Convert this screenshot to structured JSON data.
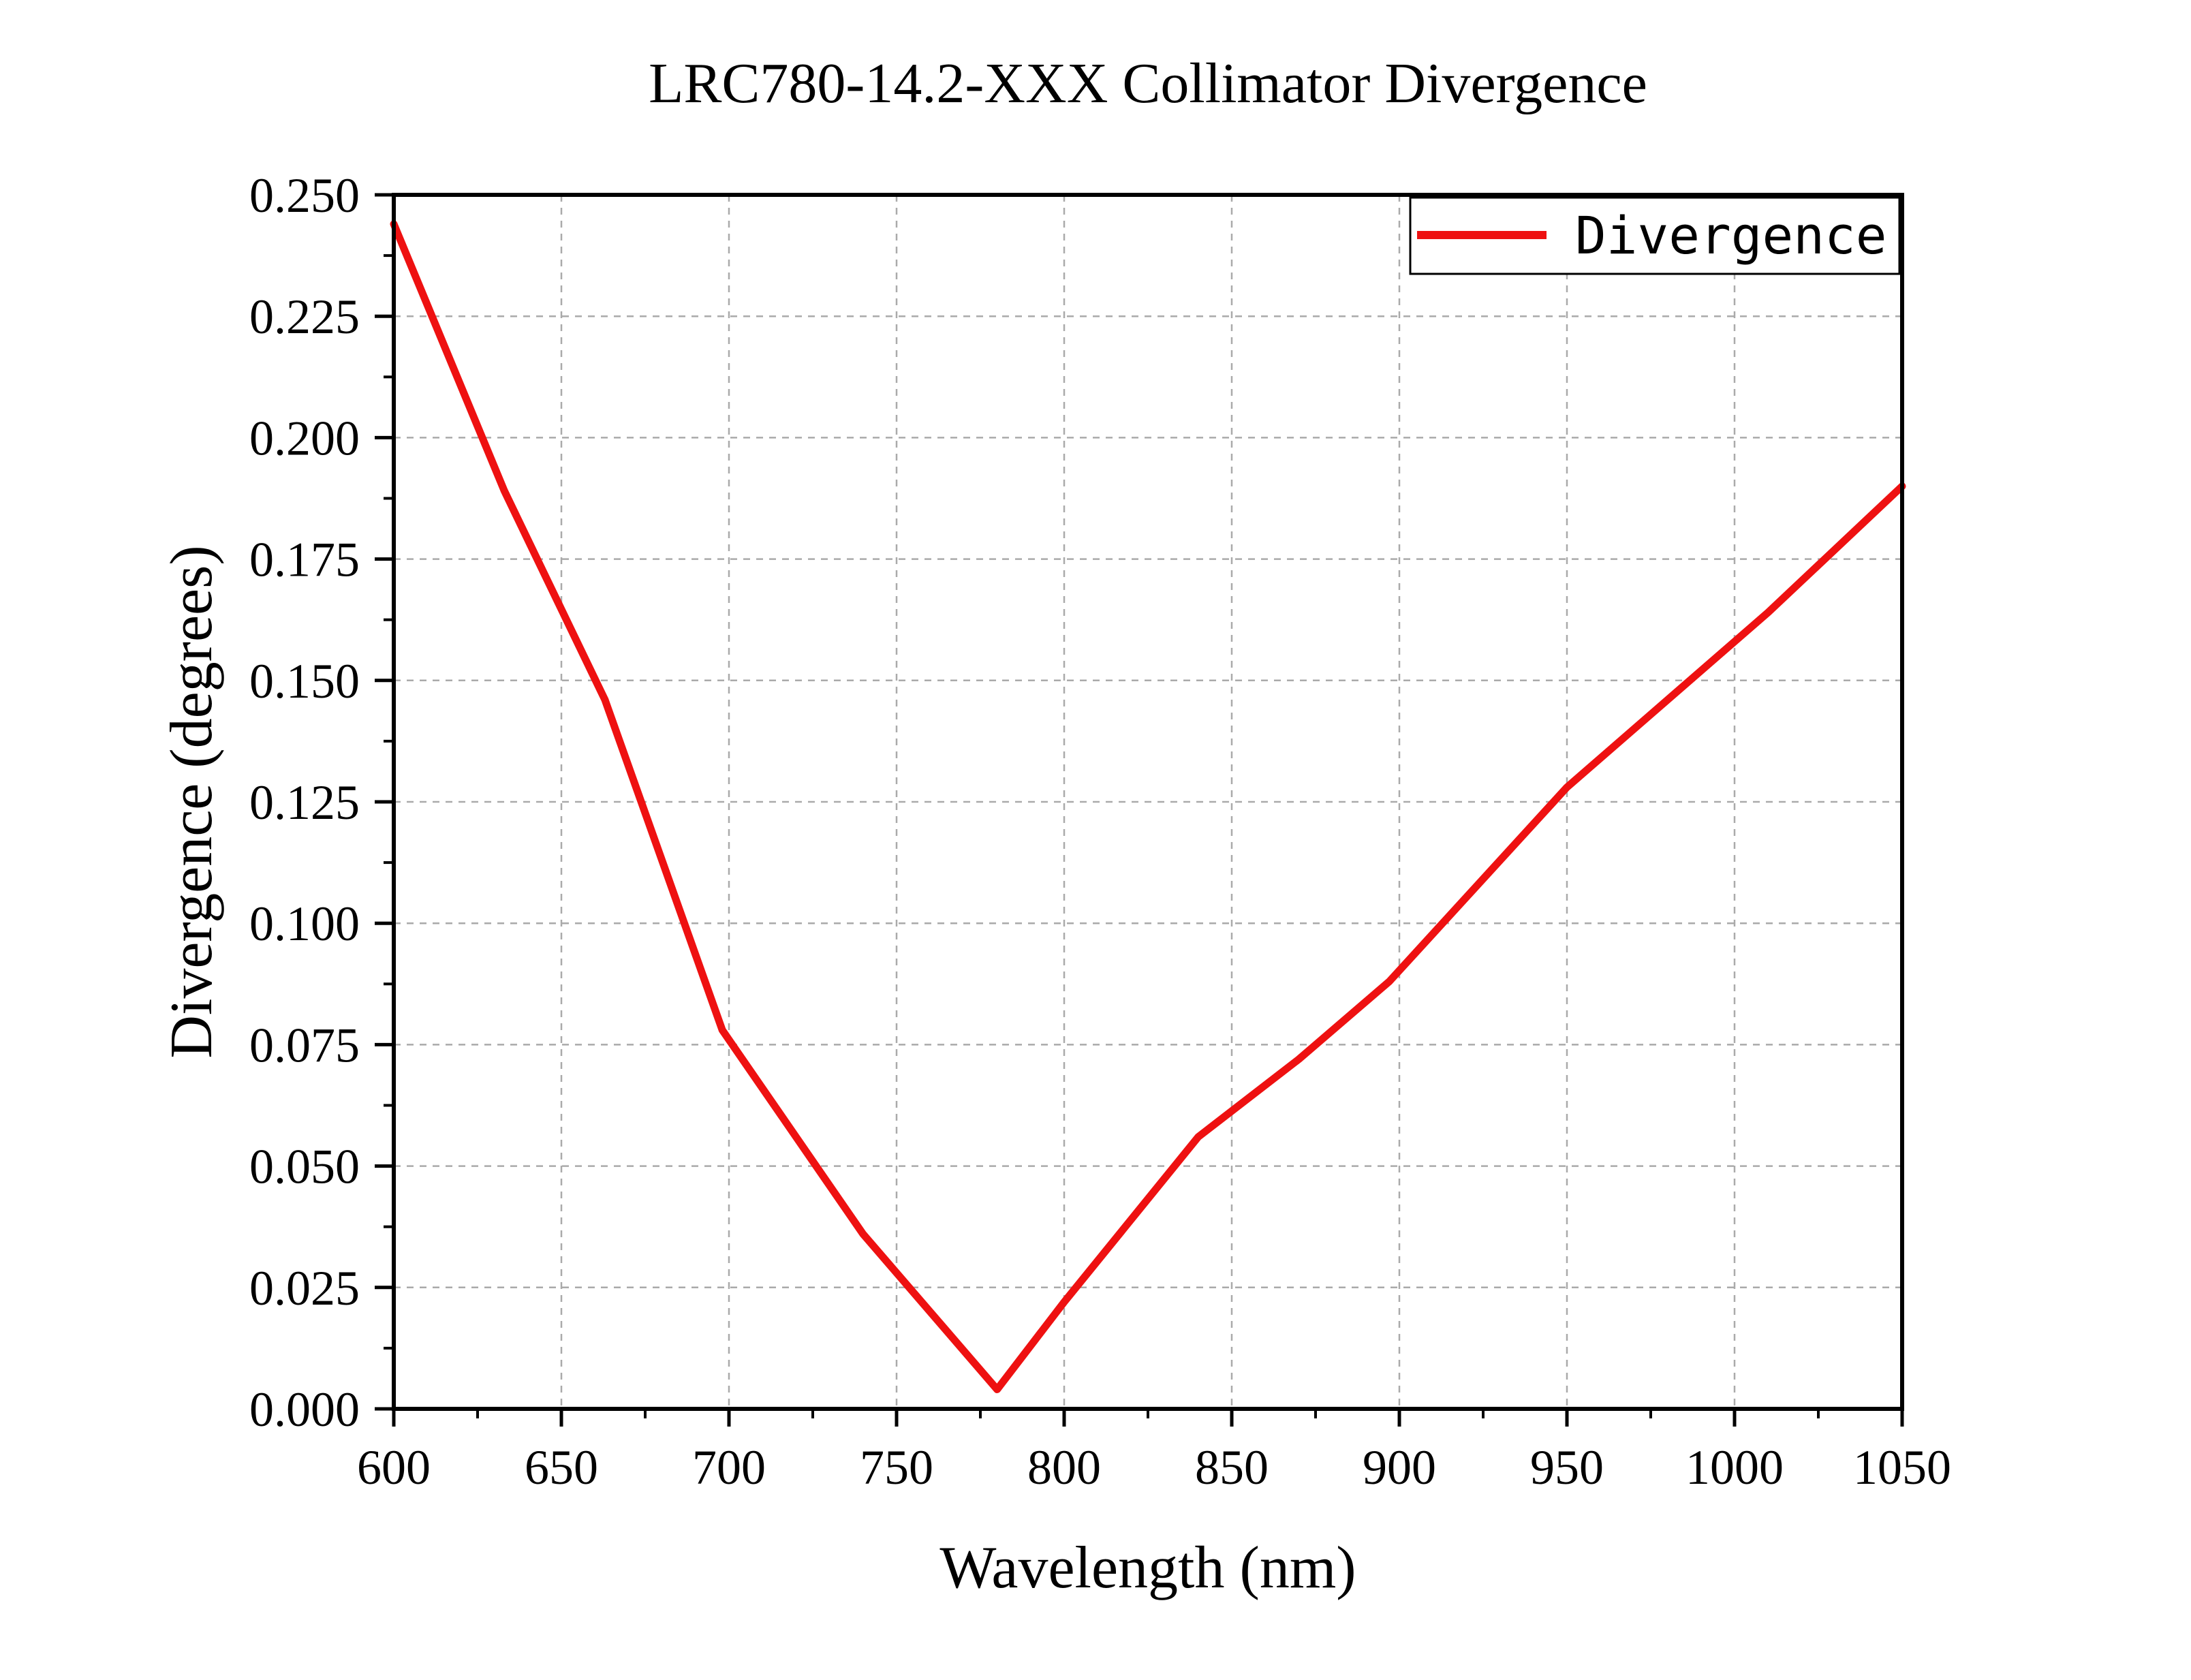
{
  "chart_data": {
    "type": "line",
    "title": "LRC780-14.2-XXX Collimator Divergence",
    "xlabel": "Wavelength (nm)",
    "ylabel": "Divergence (degrees)",
    "xlim": [
      600,
      1050
    ],
    "ylim": [
      0,
      0.25
    ],
    "x_ticks": [
      600,
      650,
      700,
      750,
      800,
      850,
      900,
      950,
      1000,
      1050
    ],
    "x_tick_labels": [
      "600",
      "650",
      "700",
      "750",
      "800",
      "850",
      "900",
      "950",
      "1000",
      "1050"
    ],
    "y_ticks": [
      0,
      0.025,
      0.05,
      0.075,
      0.1,
      0.125,
      0.15,
      0.175,
      0.2,
      0.225,
      0.25
    ],
    "y_tick_labels": [
      "0.000",
      "0.025",
      "0.050",
      "0.075",
      "0.100",
      "0.125",
      "0.150",
      "0.175",
      "0.200",
      "0.225",
      "0.250"
    ],
    "grid": true,
    "legend_position": "top-right",
    "series": [
      {
        "name": "Divergence",
        "color": "#ee1111",
        "x": [
          600,
          633,
          663,
          698,
          740,
          780,
          800,
          840,
          870,
          897,
          950,
          1010,
          1050
        ],
        "y": [
          0.244,
          0.189,
          0.146,
          0.078,
          0.036,
          0.004,
          0.022,
          0.056,
          0.072,
          0.088,
          0.128,
          0.164,
          0.19
        ]
      }
    ]
  }
}
